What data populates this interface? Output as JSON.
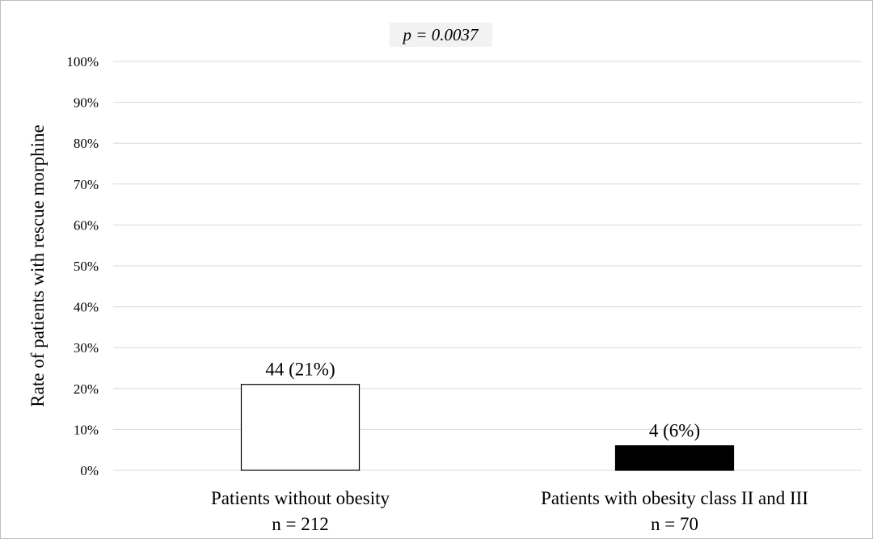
{
  "chart_data": {
    "type": "bar",
    "annotation": "p = 0.0037",
    "ylabel": "Rate of patients with rescue morphine",
    "ylim": [
      0,
      100
    ],
    "yticks": [
      "0%",
      "10%",
      "20%",
      "30%",
      "40%",
      "50%",
      "60%",
      "70%",
      "80%",
      "90%",
      "100%"
    ],
    "grid": true,
    "categories": [
      {
        "line1": "Patients without obesity",
        "line2": "n = 212"
      },
      {
        "line1": "Patients with obesity class II and III",
        "line2": "n = 70"
      }
    ],
    "values": [
      21,
      6
    ],
    "data_labels": [
      "44 (21%)",
      "4 (6%)"
    ],
    "colors": [
      "#ffffff",
      "#000000"
    ],
    "edge_color": "#000000",
    "grid_color": "#d9d9d9",
    "annotation_bg": "#f2f2f2"
  }
}
